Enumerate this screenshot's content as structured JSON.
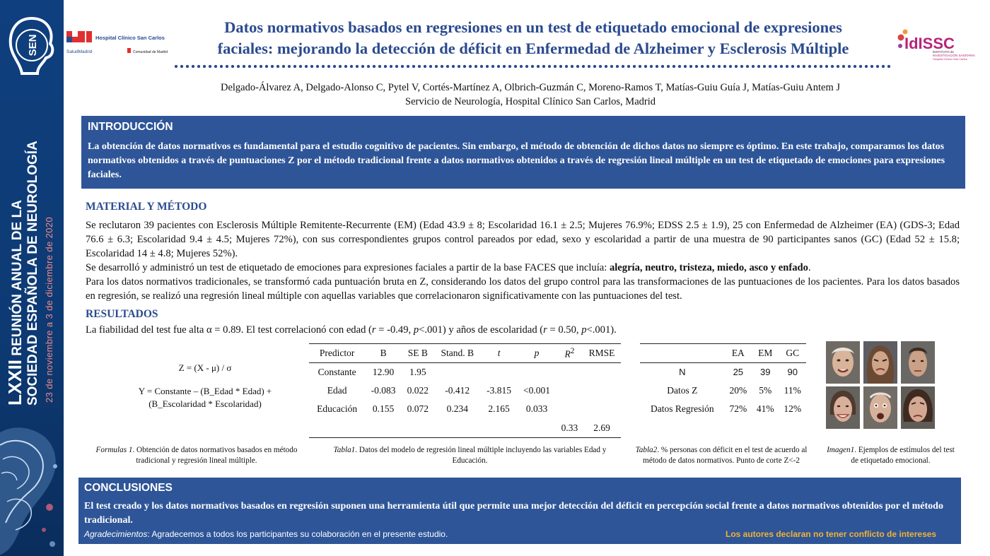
{
  "banner": {
    "sen_logo_text": "SEN",
    "meeting_number": "LXXII",
    "meeting_line1": "REUNIÓN ANUAL DE LA",
    "meeting_line2": "SOCIEDAD ESPAÑOLA DE NEUROLOGÍA",
    "dates": "23 de noviembre a 3 de diciembre de 2020"
  },
  "logos": {
    "hospital": "Hospital Clínico San Carlos",
    "salud": "SaludMadrid",
    "comunidad": "Comunidad de Madrid",
    "idissc": "IdISSC",
    "idissc_sub1": "INSTITUTO de",
    "idissc_sub2": "INVESTIGACIÓN SANITARIA",
    "idissc_sub3": "Hospital Clínico San Carlos"
  },
  "header": {
    "title_line1": "Datos normativos basados en regresiones en un test de etiquetado emocional  de expresiones",
    "title_line2": "faciales: mejorando la detección de déficit en Enfermedad de Alzheimer y Esclerosis Múltiple",
    "authors": "Delgado-Álvarez A, Delgado-Alonso C, Pytel V, Cortés-Martínez A,  Olbrich-Guzmán C, Moreno-Ramos T, Matías-Guiu Guía J, Matías-Guiu Antem J",
    "affiliation": "Servicio de Neurología, Hospital Clínico San Carlos, Madrid"
  },
  "intro": {
    "heading": "INTRODUCCIÓN",
    "text": "La obtención de datos normativos es fundamental para el estudio cognitivo de pacientes. Sin embargo, el método de obtención de dichos datos no siempre es óptimo. En este trabajo, comparamos los datos normativos obtenidos a través de puntuaciones Z por el método tradicional frente a datos normativos obtenidos a través de regresión lineal múltiple en un test de etiquetado de emociones para expresiones faciales."
  },
  "method": {
    "heading": "MATERIAL Y MÉTODO",
    "p1": "Se reclutaron 39 pacientes con Esclerosis Múltiple Remitente-Recurrente (EM) (Edad 43.9 ± 8; Escolaridad 16.1 ± 2.5; Mujeres 76.9%; EDSS 2.5 ± 1.9),  25 con Enfermedad de Alzheimer (EA) (GDS-3; Edad 76.6 ± 6.3; Escolaridad 9.4 ± 4.5; Mujeres 72%), con sus correspondientes grupos control pareados por edad, sexo y escolaridad a partir de una muestra de 90 participantes sanos (GC) (Edad 52 ± 15.8; Escolaridad 14 ± 4.8; Mujeres 52%).",
    "p2_pre": "Se desarrolló y administró un test de etiquetado de emociones para expresiones faciales a partir de la base FACES que incluía: ",
    "p2_bold": "alegría, neutro, tristeza, miedo, asco y enfado",
    "p2_post": ".",
    "p3": "Para los datos normativos tradicionales, se transformó cada puntuación bruta en Z, considerando los datos del grupo control para las transformaciones de las puntuaciones de los pacientes. Para los datos basados en regresión, se realizó una regresión lineal múltiple con aquellas variables que correlacionaron significativamente con las puntuaciones del test."
  },
  "results": {
    "heading": "RESULTADOS",
    "t_a": "La fiabilidad del test fue alta α = 0.89. El test correlacionó con edad (",
    "t_r1": "r",
    "t_b": " = -0.49, ",
    "t_p1": "p",
    "t_c": "<.001) y años de escolaridad (",
    "t_r2": "r",
    "t_d": " = 0.50, ",
    "t_p2": "p",
    "t_e": "<.001)."
  },
  "formulas": {
    "f1": "Z = (X - μ) / σ",
    "f2_line1": "Y = Constante – (B_Edad * Edad) +",
    "f2_line2": "(B_Escolaridad * Escolaridad)",
    "caption_label": "Formulas 1",
    "caption_text": ". Obtención de datos normativos basados en método tradicional y regresión lineal múltiple."
  },
  "table1": {
    "headers": [
      "Predictor",
      "B",
      "SE B",
      "Stand. B",
      "t",
      "p",
      "R2",
      "RMSE"
    ],
    "r2_base": "R",
    "r2_sup": "2",
    "rows": [
      [
        "Constante",
        "12.90",
        "1.95",
        "",
        "",
        "",
        "",
        ""
      ],
      [
        "Edad",
        "-0.083",
        "0.022",
        "-0.412",
        "-3.815",
        "<0.001",
        "",
        ""
      ],
      [
        "Educación",
        "0.155",
        "0.072",
        "0.234",
        "2.165",
        "0.033",
        "",
        ""
      ],
      [
        "",
        "",
        "",
        "",
        "",
        "",
        "0.33",
        "2.69"
      ]
    ],
    "caption_label": "Tabla1",
    "caption_text": ". Datos del modelo de regresión lineal múltiple incluyendo las variables Edad y Educación."
  },
  "table2": {
    "headers": [
      "",
      "EA",
      "EM",
      "GC"
    ],
    "rows": [
      [
        "N",
        "25",
        "39",
        "90"
      ],
      [
        "Datos Z",
        "20%",
        "5%",
        "11%"
      ],
      [
        "Datos Regresión",
        "72%",
        "41%",
        "12%"
      ]
    ],
    "caption_label": "Tabla2",
    "caption_text": ". % personas con déficit en el test de acuerdo al método de datos normativos. Punto de corte Z<-2"
  },
  "images": {
    "faces": [
      "face-elderly-man",
      "face-woman-disgust",
      "face-man-neutral",
      "face-woman-smile",
      "face-elderly-man-fear",
      "face-woman-sad"
    ],
    "caption_label": "Imagen1",
    "caption_text": ". Ejemplos de estímulos del test de etiquetado emocional."
  },
  "conclusions": {
    "heading": "CONCLUSIONES",
    "text": "El test creado y los datos normativos basados en regresión suponen una herramienta útil que permite una mejor detección del déficit en percepción social frente a datos normativos obtenidos por el método tradicional.",
    "ack_label": "Agradecimientos",
    "ack_text": ": Agradecemos a todos los participantes su colaboración en el presente estudio.",
    "coi": "Los autores declaran no tener conflicto de intereses"
  },
  "colors": {
    "brand_blue": "#2e5598",
    "title_blue": "#2b4b8f",
    "banner_blue": "#0f3f7e",
    "coi_yellow": "#f2b233",
    "date_pink": "#f18a8a"
  }
}
